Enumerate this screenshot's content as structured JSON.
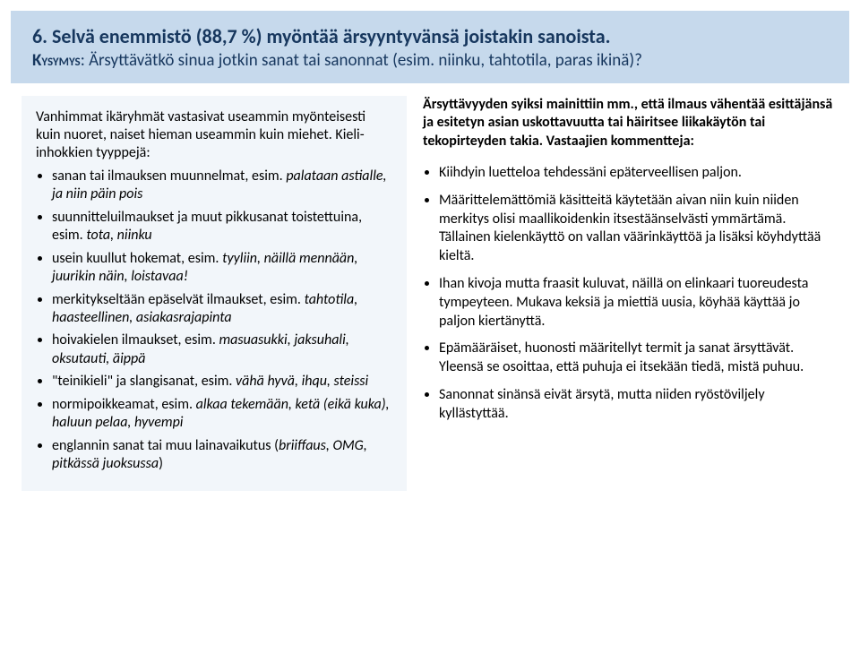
{
  "header": {
    "title": "6. Selvä enemmistö (88,7 %) myöntää ärsyyntyvänsä joistakin sanoista.",
    "kysymys_label": "Kysymys",
    "subtitle_rest": ": Ärsyttävätkö sinua jotkin sanat tai sanonnat (esim. niinku, tahtotila, paras ikinä)?"
  },
  "left": {
    "intro": "Vanhimmat ikäryhmät vastasivat useammin myönteisesti kuin nuoret, naiset hieman useammin kuin miehet. Kieli-inhokkien tyyppejä:",
    "items": [
      {
        "plain": "sanan tai ilmauksen muunnelmat, esim. ",
        "italic": "palataan astialle, ja niin päin pois"
      },
      {
        "plain": "suunnitteluilmaukset ja muut pikkusanat toistettuina, esim. ",
        "italic": "tota, niinku"
      },
      {
        "plain": "usein kuullut hokemat, esim. ",
        "italic": "tyyliin, näillä mennään, juurikin näin, loistavaa!"
      },
      {
        "plain": "merkitykseltään epäselvät ilmaukset, esim. ",
        "italic": "tahtotila, haasteellinen, asiakasrajapinta"
      },
      {
        "plain": "hoivakielen ilmaukset, esim. ",
        "italic": "masuasukki, jaksuhali, oksutauti, äippä"
      },
      {
        "plain": "\"teinikieli\" ja slangisanat, esim. ",
        "italic": "vähä hyvä, ihqu, steissi"
      },
      {
        "plain": "normipoikkeamat, esim. ",
        "italic": "alkaa tekemään, ketä (eikä kuka), haluun pelaa, hyvempi"
      },
      {
        "plain": "englannin sanat tai muu lainavaikutus (",
        "italic": "briiffaus, OMG, pitkässä juoksussa",
        "tail": ")"
      }
    ]
  },
  "right": {
    "intro": "Ärsyttävyyden syiksi mainittiin mm., että ilmaus vähentää esittäjänsä ja esitetyn asian uskottavuutta tai häiritsee liikakäytön tai tekopirteyden takia. Vastaajien kommentteja:",
    "items": [
      "Kiihdyin luetteloa tehdessäni epäterveellisen paljon.",
      "Määrittelemättömiä käsitteitä käytetään aivan niin kuin niiden merkitys olisi maallikoidenkin itsestäänselvästi ymmärtämä. Tällainen kielenkäyttö on vallan väärinkäyttöä ja lisäksi köyhdyttää kieltä.",
      "Ihan kivoja mutta fraasit kuluvat, näillä on elinkaari tuoreudesta tympeyteen. Mukava keksiä ja miettiä uusia, köyhää käyttää jo paljon kiertänyttä.",
      "Epämääräiset, huonosti määritellyt termit ja sanat ärsyttävät. Yleensä se osoittaa, että puhuja ei itsekään tiedä, mistä puhuu.",
      "Sanonnat sinänsä eivät ärsytä, mutta niiden ryöstöviljely kyllästyttää."
    ]
  }
}
